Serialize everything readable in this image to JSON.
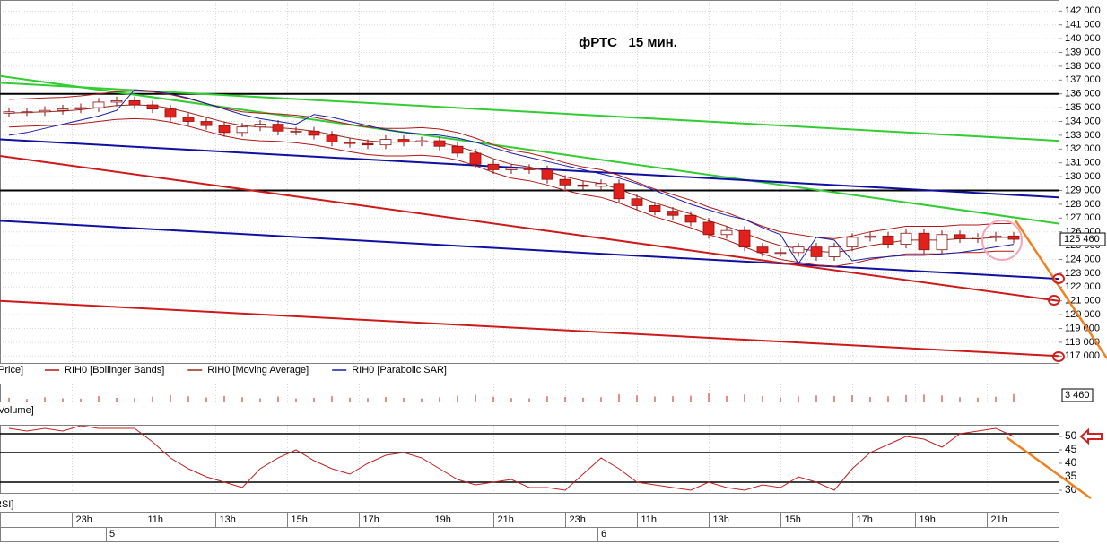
{
  "chart_data": [
    {
      "type": "candlestick",
      "title": "фРТС   15 мин.",
      "price_label": "Price]",
      "xlim": [
        -0.5,
        58.5
      ],
      "ylim": [
        116500,
        142800
      ],
      "yticks": [
        {
          "value": 142000,
          "label": "142 000"
        },
        {
          "value": 141000,
          "label": "141 000"
        },
        {
          "value": 140000,
          "label": "140 000"
        },
        {
          "value": 139000,
          "label": "139 000"
        },
        {
          "value": 138000,
          "label": "138 000"
        },
        {
          "value": 137000,
          "label": "137 000"
        },
        {
          "value": 136000,
          "label": "136 000"
        },
        {
          "value": 135000,
          "label": "135 000"
        },
        {
          "value": 134000,
          "label": "134 000"
        },
        {
          "value": 133000,
          "label": "133 000"
        },
        {
          "value": 132000,
          "label": "132 000"
        },
        {
          "value": 131000,
          "label": "131 000"
        },
        {
          "value": 130000,
          "label": "130 000"
        },
        {
          "value": 129000,
          "label": "129 000"
        },
        {
          "value": 128000,
          "label": "128 000"
        },
        {
          "value": 127000,
          "label": "127 000"
        },
        {
          "value": 126000,
          "label": "126 000"
        },
        {
          "value": 125000,
          "label": "125 000"
        },
        {
          "value": 124000,
          "label": "124 000"
        },
        {
          "value": 123000,
          "label": "123 000"
        },
        {
          "value": 122000,
          "label": "122 000"
        },
        {
          "value": 121000,
          "label": "121 000"
        },
        {
          "value": 120000,
          "label": "120 000"
        },
        {
          "value": 119000,
          "label": "119 000"
        },
        {
          "value": 118000,
          "label": "118 000"
        },
        {
          "value": 117000,
          "label": "117 000"
        }
      ],
      "grid": true,
      "up_color": "#ffffff",
      "down_color": "#e3211c",
      "edge_color": "#8b1010",
      "open": [
        134600,
        134700,
        134700,
        134800,
        134900,
        135000,
        135400,
        135500,
        135200,
        134900,
        134300,
        134000,
        133700,
        133200,
        133600,
        133800,
        133300,
        133300,
        133000,
        132500,
        132400,
        132300,
        132700,
        132500,
        132600,
        132200,
        131700,
        130900,
        130500,
        130600,
        130500,
        129800,
        129400,
        129300,
        129500,
        128400,
        127900,
        127500,
        127200,
        126700,
        125800,
        126100,
        124900,
        124500,
        124500,
        124900,
        124200,
        124900,
        125600,
        125700,
        125100,
        125900,
        124700,
        125800,
        125500,
        125600,
        125700
      ],
      "high": [
        135000,
        135000,
        135100,
        135200,
        135300,
        135700,
        135800,
        135800,
        135500,
        135200,
        134600,
        134300,
        134000,
        133900,
        134100,
        134100,
        133600,
        133600,
        133300,
        132800,
        132700,
        133000,
        133000,
        132900,
        132900,
        132500,
        132000,
        131200,
        130900,
        130900,
        130800,
        130100,
        129700,
        129800,
        129800,
        128700,
        128200,
        127800,
        127500,
        127000,
        126400,
        126400,
        125200,
        124800,
        125200,
        125200,
        125200,
        125900,
        126000,
        126000,
        126200,
        126200,
        126100,
        126100,
        125900,
        126000,
        126000
      ],
      "low": [
        134300,
        134400,
        134400,
        134500,
        134600,
        134700,
        135100,
        134900,
        134600,
        134000,
        133700,
        133400,
        132900,
        132900,
        133300,
        133000,
        133000,
        132700,
        132200,
        132100,
        132000,
        132000,
        132200,
        132200,
        131900,
        131400,
        130600,
        130200,
        130200,
        130200,
        129500,
        129100,
        129000,
        129000,
        128100,
        127600,
        127200,
        126900,
        126400,
        125500,
        125500,
        124600,
        124200,
        124200,
        124200,
        123900,
        123900,
        124600,
        125300,
        124800,
        124800,
        124400,
        124400,
        125200,
        125200,
        125300,
        125160
      ],
      "close": [
        134700,
        134700,
        134800,
        134900,
        135000,
        135400,
        135500,
        135200,
        134900,
        134300,
        134000,
        133700,
        133200,
        133600,
        133800,
        133300,
        133300,
        133000,
        132500,
        132400,
        132300,
        132700,
        132500,
        132600,
        132200,
        131700,
        130900,
        130500,
        130600,
        130500,
        129800,
        129400,
        129300,
        129500,
        128400,
        127900,
        127500,
        127200,
        126700,
        125800,
        126100,
        124900,
        124500,
        124500,
        124900,
        124200,
        124900,
        125600,
        125700,
        125100,
        125900,
        124700,
        125800,
        125500,
        125600,
        125700,
        125460
      ],
      "last_price": {
        "value": 125460,
        "label": "125 460"
      },
      "bands": {
        "name": "RIH0 [Bollinger Bands]",
        "color": "#b01818",
        "upper": [
          135600,
          135650,
          135700,
          135750,
          135850,
          136000,
          136150,
          136200,
          136150,
          135950,
          135650,
          135300,
          134950,
          134700,
          134600,
          134550,
          134450,
          134300,
          134050,
          133800,
          133600,
          133500,
          133500,
          133550,
          133450,
          133200,
          132800,
          132300,
          131900,
          131700,
          131400,
          131000,
          130700,
          130500,
          130100,
          129600,
          129100,
          128700,
          128300,
          127800,
          127400,
          126900,
          126400,
          126000,
          125800,
          125600,
          125500,
          125700,
          126000,
          126200,
          126400,
          126400,
          126400,
          126500,
          126500,
          126600,
          126600
        ],
        "lower": [
          133600,
          133650,
          133700,
          133750,
          133850,
          134000,
          134150,
          134200,
          134150,
          133950,
          133650,
          133300,
          132950,
          132700,
          132600,
          132550,
          132450,
          132300,
          132050,
          131800,
          131600,
          131500,
          131500,
          131550,
          131450,
          131200,
          130800,
          130300,
          129900,
          129700,
          129400,
          129000,
          128700,
          128500,
          128100,
          127600,
          127100,
          126700,
          126300,
          125800,
          125400,
          124900,
          124400,
          124000,
          123800,
          123600,
          123500,
          123700,
          124000,
          124200,
          124400,
          124400,
          124400,
          124500,
          124500,
          124600,
          124600
        ]
      },
      "series": [
        {
          "name": "RIH0 [Moving Average]",
          "color": "#9a2a1a",
          "values": [
            134600,
            134650,
            134700,
            134750,
            134850,
            135000,
            135150,
            135200,
            135150,
            134950,
            134650,
            134300,
            133950,
            133700,
            133600,
            133550,
            133450,
            133300,
            133050,
            132800,
            132600,
            132500,
            132500,
            132550,
            132450,
            132200,
            131800,
            131300,
            130900,
            130700,
            130400,
            130000,
            129700,
            129500,
            129100,
            128600,
            128100,
            127700,
            127300,
            126800,
            126400,
            125900,
            125400,
            125000,
            124800,
            124600,
            124500,
            124700,
            125000,
            125200,
            125400,
            125400,
            125400,
            125500,
            125500,
            125600,
            125600
          ]
        },
        {
          "name": "RIH0 [Parabolic SAR]",
          "color": "#1c1ca8",
          "values": [
            133000,
            133200,
            133500,
            133800,
            134100,
            134400,
            134800,
            136300,
            136200,
            136000,
            135700,
            135300,
            134900,
            134500,
            134200,
            134000,
            133800,
            134500,
            134300,
            134000,
            133700,
            133400,
            133200,
            133100,
            133000,
            132800,
            132500,
            132100,
            131700,
            131400,
            131100,
            130800,
            130500,
            130200,
            129900,
            129500,
            129000,
            128500,
            128000,
            127600,
            127200,
            126900,
            126300,
            125800,
            123700,
            125600,
            125400,
            123900,
            124100,
            124200,
            124300,
            124300,
            124400,
            124500,
            124700,
            124900,
            125100
          ]
        }
      ],
      "trend_lines": [
        {
          "color": "#000000",
          "x": [
            -0.5,
            58.5
          ],
          "y": [
            136000,
            136000
          ]
        },
        {
          "color": "#000000",
          "x": [
            -0.5,
            58.5
          ],
          "y": [
            129000,
            129000
          ]
        },
        {
          "color": "#33cc33",
          "x": [
            -0.5,
            58.5
          ],
          "y": [
            137300,
            126600
          ]
        },
        {
          "color": "#33cc33",
          "x": [
            -0.5,
            58.5
          ],
          "y": [
            136800,
            132600
          ]
        },
        {
          "color": "#1010a0",
          "x": [
            -0.5,
            58.5
          ],
          "y": [
            132700,
            128500
          ]
        },
        {
          "color": "#1010a0",
          "x": [
            -0.5,
            58.5
          ],
          "y": [
            126800,
            122600
          ]
        },
        {
          "color": "#cc1a1a",
          "x": [
            -0.5,
            58.5
          ],
          "y": [
            131500,
            121000
          ]
        },
        {
          "color": "#cc1a1a",
          "x": [
            -0.5,
            58.5
          ],
          "y": [
            121000,
            117000
          ]
        }
      ]
    },
    {
      "type": "bar",
      "title": "Volume]",
      "color": "#c02020",
      "ylim": [
        0,
        8000
      ],
      "values": [
        1800,
        1200,
        2000,
        1500,
        1300,
        2500,
        1700,
        1600,
        2200,
        2900,
        2400,
        1900,
        2600,
        2000,
        1500,
        2300,
        1400,
        1700,
        2500,
        1800,
        1600,
        2100,
        1700,
        1400,
        2000,
        2700,
        3100,
        2200,
        1600,
        1500,
        2400,
        2100,
        1800,
        2000,
        3400,
        2800,
        2300,
        2500,
        2700,
        3900,
        2600,
        3300,
        2500,
        1900,
        2300,
        2800,
        2600,
        2900,
        2100,
        2400,
        3000,
        3200,
        2800,
        2000,
        1800,
        2200,
        3460
      ],
      "last_value": {
        "value": 3460,
        "label": "3 460"
      }
    },
    {
      "type": "line",
      "title": "RSI]",
      "color": "#c02020",
      "xlim": [
        -0.5,
        58.5
      ],
      "ylim": [
        29,
        54
      ],
      "yticks": [
        50,
        45,
        40,
        35,
        30
      ],
      "levels": [
        51,
        44,
        33
      ],
      "values": [
        53,
        52,
        53,
        52,
        54,
        53,
        53,
        53,
        48,
        42,
        38,
        35,
        33,
        31,
        38,
        42,
        45,
        41,
        38,
        36,
        40,
        43,
        44,
        42,
        38,
        34,
        32,
        33,
        34,
        31,
        31,
        30,
        36,
        42,
        38,
        33,
        32,
        31,
        30,
        33,
        31,
        30,
        32,
        31,
        35,
        33,
        30,
        38,
        44,
        47,
        50,
        49,
        46,
        51,
        52,
        53,
        50
      ],
      "xticks": [
        {
          "value": 3.5,
          "label": "23h"
        },
        {
          "value": 7.5,
          "label": "11h"
        },
        {
          "value": 11.5,
          "label": "13h"
        },
        {
          "value": 15.5,
          "label": "15h"
        },
        {
          "value": 19.5,
          "label": "17h"
        },
        {
          "value": 23.5,
          "label": "19h"
        },
        {
          "value": 27,
          "label": "21h"
        },
        {
          "value": 31,
          "label": "23h"
        },
        {
          "value": 35,
          "label": "11h"
        },
        {
          "value": 39,
          "label": "13h"
        },
        {
          "value": 43,
          "label": "15h"
        },
        {
          "value": 47,
          "label": "17h"
        },
        {
          "value": 50.5,
          "label": "19h"
        },
        {
          "value": 54.5,
          "label": "21h"
        }
      ],
      "days": [
        "5",
        "6"
      ]
    }
  ]
}
